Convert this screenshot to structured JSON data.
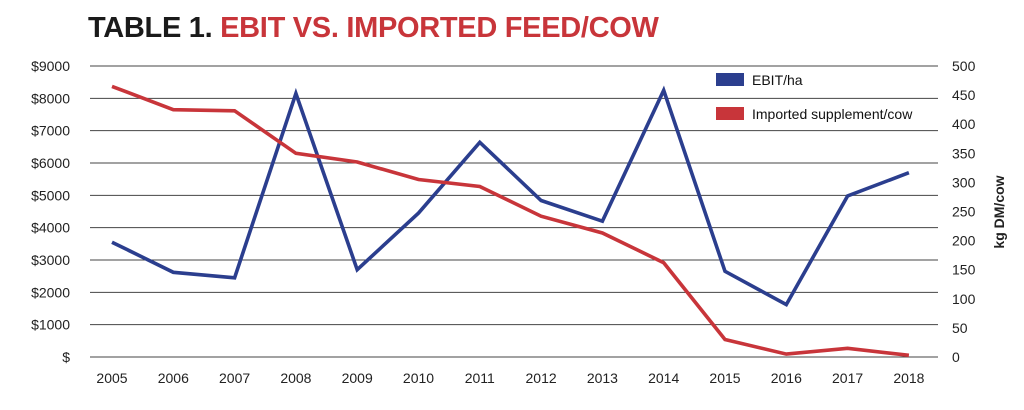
{
  "title": {
    "lead": "TABLE 1.",
    "rest": "EBIT VS. IMPORTED FEED/COW"
  },
  "colors": {
    "ebit": "#2b3e8e",
    "supplement": "#c8353a",
    "grid": "#444444"
  },
  "chart_data": {
    "type": "line",
    "title": "TABLE 1. EBIT VS. IMPORTED FEED/COW",
    "x": [
      "2005",
      "2006",
      "2007",
      "2008",
      "2009",
      "2010",
      "2011",
      "2012",
      "2013",
      "2014",
      "2015",
      "2016",
      "2017",
      "2018"
    ],
    "series": [
      {
        "name": "EBIT/ha",
        "axis": "left",
        "values": [
          3550,
          2620,
          2450,
          8150,
          2700,
          4450,
          6640,
          4840,
          4200,
          8250,
          2650,
          1620,
          4980,
          5700
        ]
      },
      {
        "name": "Imported supplement/cow",
        "axis": "right",
        "values": [
          465,
          425,
          423,
          350,
          335,
          305,
          293,
          242,
          213,
          162,
          30,
          5,
          15,
          3
        ]
      }
    ],
    "y_left": {
      "ylim": [
        0,
        9000
      ],
      "ticks": [
        "$",
        "$1000",
        "$2000",
        "$3000",
        "$4000",
        "$5000",
        "$6000",
        "$7000",
        "$8000",
        "$9000"
      ]
    },
    "y_right": {
      "label": "kg DM/cow",
      "ylim": [
        0,
        500
      ],
      "ticks": [
        "0",
        "50",
        "100",
        "150",
        "200",
        "250",
        "300",
        "350",
        "400",
        "450",
        "500"
      ]
    },
    "grid": true,
    "legend_position": "top-right"
  }
}
